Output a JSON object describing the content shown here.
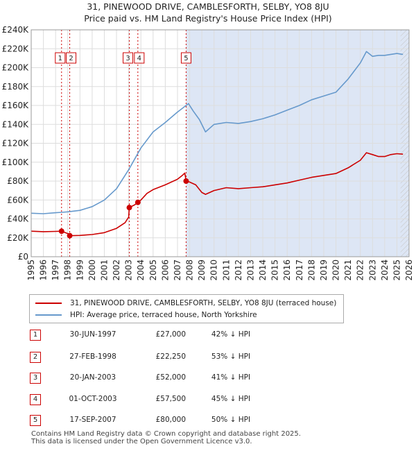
{
  "title_line1": "31, PINEWOOD DRIVE, CAMBLESFORTH, SELBY, YO8 8JU",
  "title_line2": "Price paid vs. HM Land Registry's House Price Index (HPI)",
  "colors": {
    "property": "#cc0000",
    "hpi": "#6699cc",
    "shade": "#dde6f5",
    "marker_line": "#cc0000"
  },
  "chart_data": {
    "type": "line",
    "xlim": [
      1995,
      2026
    ],
    "ylim": [
      0,
      240000
    ],
    "y_ticks": [
      0,
      20000,
      40000,
      60000,
      80000,
      100000,
      120000,
      140000,
      160000,
      180000,
      200000,
      220000,
      240000
    ],
    "y_tick_labels": [
      "£0",
      "£20K",
      "£40K",
      "£60K",
      "£80K",
      "£100K",
      "£120K",
      "£140K",
      "£160K",
      "£180K",
      "£200K",
      "£220K",
      "£240K"
    ],
    "x_ticks": [
      1995,
      1996,
      1997,
      1998,
      1999,
      2000,
      2001,
      2002,
      2003,
      2004,
      2005,
      2006,
      2007,
      2008,
      2009,
      2010,
      2011,
      2012,
      2013,
      2014,
      2015,
      2016,
      2017,
      2018,
      2019,
      2020,
      2021,
      2022,
      2023,
      2024,
      2025,
      2026
    ],
    "x_tick_labels": [
      "1995",
      "1996",
      "1997",
      "1998",
      "1999",
      "2000",
      "2001",
      "2002",
      "2003",
      "2004",
      "2005",
      "2006",
      "2007",
      "2008",
      "2009",
      "2010",
      "2011",
      "2012",
      "2013",
      "2014",
      "2015",
      "2016",
      "2017",
      "2018",
      "2019",
      "2020",
      "2021",
      "2022",
      "2023",
      "2024",
      "2025",
      "2026"
    ],
    "grid": true,
    "series": [
      {
        "name": "31, PINEWOOD DRIVE, CAMBLESFORTH, SELBY, YO8 8JU (terraced house)",
        "color": "#cc0000",
        "points": [
          [
            1995.0,
            27000
          ],
          [
            1996.0,
            26500
          ],
          [
            1997.0,
            26800
          ],
          [
            1997.5,
            27000
          ],
          [
            1998.0,
            24500
          ],
          [
            1998.16,
            22250
          ],
          [
            1999.0,
            22500
          ],
          [
            2000.0,
            23500
          ],
          [
            2001.0,
            25500
          ],
          [
            2002.0,
            30000
          ],
          [
            2002.7,
            36000
          ],
          [
            2003.0,
            42000
          ],
          [
            2003.05,
            52000
          ],
          [
            2003.5,
            55000
          ],
          [
            2003.75,
            57500
          ],
          [
            2004.0,
            60000
          ],
          [
            2004.5,
            67000
          ],
          [
            2005.0,
            71000
          ],
          [
            2006.0,
            76000
          ],
          [
            2007.0,
            82000
          ],
          [
            2007.4,
            86000
          ],
          [
            2007.6,
            88500
          ],
          [
            2007.71,
            80000
          ],
          [
            2008.0,
            79000
          ],
          [
            2008.5,
            76000
          ],
          [
            2009.0,
            68000
          ],
          [
            2009.3,
            66000
          ],
          [
            2010.0,
            70000
          ],
          [
            2011.0,
            73000
          ],
          [
            2012.0,
            72000
          ],
          [
            2013.0,
            73000
          ],
          [
            2014.0,
            74000
          ],
          [
            2015.0,
            76000
          ],
          [
            2016.0,
            78000
          ],
          [
            2017.0,
            81000
          ],
          [
            2018.0,
            84000
          ],
          [
            2019.0,
            86000
          ],
          [
            2020.0,
            88000
          ],
          [
            2021.0,
            94000
          ],
          [
            2022.0,
            102000
          ],
          [
            2022.5,
            110000
          ],
          [
            2023.0,
            108000
          ],
          [
            2023.5,
            106000
          ],
          [
            2024.0,
            106000
          ],
          [
            2024.5,
            108000
          ],
          [
            2025.0,
            109000
          ],
          [
            2025.5,
            108500
          ]
        ]
      },
      {
        "name": "HPI: Average price, terraced house, North Yorkshire",
        "color": "#6699cc",
        "points": [
          [
            1995.0,
            46000
          ],
          [
            1996.0,
            45500
          ],
          [
            1997.0,
            46500
          ],
          [
            1997.5,
            47000
          ],
          [
            1998.0,
            47500
          ],
          [
            1999.0,
            49000
          ],
          [
            2000.0,
            53000
          ],
          [
            2001.0,
            60000
          ],
          [
            2002.0,
            72000
          ],
          [
            2003.0,
            92000
          ],
          [
            2004.0,
            115000
          ],
          [
            2005.0,
            132000
          ],
          [
            2006.0,
            142000
          ],
          [
            2007.0,
            153000
          ],
          [
            2007.5,
            158000
          ],
          [
            2007.9,
            162000
          ],
          [
            2008.3,
            154000
          ],
          [
            2008.8,
            145000
          ],
          [
            2009.3,
            132000
          ],
          [
            2010.0,
            140000
          ],
          [
            2011.0,
            142000
          ],
          [
            2012.0,
            141000
          ],
          [
            2013.0,
            143000
          ],
          [
            2014.0,
            146000
          ],
          [
            2015.0,
            150000
          ],
          [
            2016.0,
            155000
          ],
          [
            2017.0,
            160000
          ],
          [
            2018.0,
            166000
          ],
          [
            2019.0,
            170000
          ],
          [
            2020.0,
            174000
          ],
          [
            2021.0,
            188000
          ],
          [
            2022.0,
            205000
          ],
          [
            2022.5,
            217000
          ],
          [
            2023.0,
            212000
          ],
          [
            2023.5,
            213000
          ],
          [
            2024.0,
            213000
          ],
          [
            2024.5,
            214000
          ],
          [
            2025.0,
            215000
          ],
          [
            2025.5,
            214000
          ]
        ]
      }
    ],
    "shade_from": 2007.71,
    "hatch_from": 2025.3,
    "transactions": [
      {
        "id": "1",
        "x": 1997.49,
        "y": 27000
      },
      {
        "id": "2",
        "x": 1998.16,
        "y": 22250
      },
      {
        "id": "3",
        "x": 2003.05,
        "y": 52000
      },
      {
        "id": "4",
        "x": 2003.75,
        "y": 57500
      },
      {
        "id": "5",
        "x": 2007.71,
        "y": 80000
      }
    ]
  },
  "legend": {
    "property": "31, PINEWOOD DRIVE, CAMBLESFORTH, SELBY, YO8 8JU (terraced house)",
    "hpi": "HPI: Average price, terraced house, North Yorkshire"
  },
  "table": [
    {
      "num": "1",
      "date": "30-JUN-1997",
      "price": "£27,000",
      "hpi": "42% ↓ HPI"
    },
    {
      "num": "2",
      "date": "27-FEB-1998",
      "price": "£22,250",
      "hpi": "53% ↓ HPI"
    },
    {
      "num": "3",
      "date": "20-JAN-2003",
      "price": "£52,000",
      "hpi": "41% ↓ HPI"
    },
    {
      "num": "4",
      "date": "01-OCT-2003",
      "price": "£57,500",
      "hpi": "45% ↓ HPI"
    },
    {
      "num": "5",
      "date": "17-SEP-2007",
      "price": "£80,000",
      "hpi": "50% ↓ HPI"
    }
  ],
  "footer_line1": "Contains HM Land Registry data © Crown copyright and database right 2025.",
  "footer_line2": "This data is licensed under the Open Government Licence v3.0."
}
